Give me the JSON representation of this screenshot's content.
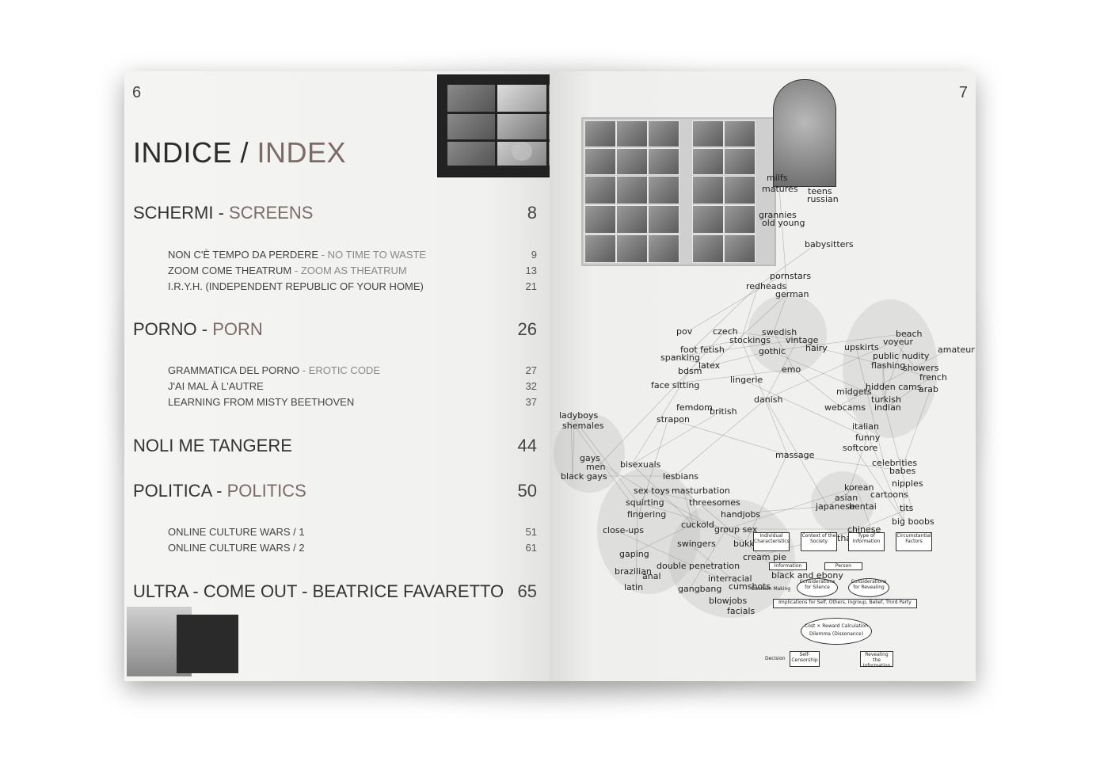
{
  "left_page": {
    "page_number": "6",
    "title_it": "INDICE",
    "title_sep": " / ",
    "title_en": "INDEX",
    "sections": [
      {
        "it": "SCHERMI",
        "sep": " - ",
        "en": "SCREENS",
        "page": "8",
        "items": [
          {
            "it": "NON C'È TEMPO DA PERDERE",
            "sep": " - ",
            "en": "NO TIME TO WASTE",
            "page": "9"
          },
          {
            "it": "ZOOM COME THEATRUM",
            "sep": " - ",
            "en": "ZOOM AS THEATRUM",
            "page": "13"
          },
          {
            "it": "I.R.Y.H. (INDEPENDENT REPUBLIC OF YOUR HOME)",
            "sep": "",
            "en": "",
            "page": "21"
          }
        ]
      },
      {
        "it": "PORNO",
        "sep": " - ",
        "en": "PORN",
        "page": "26",
        "items": [
          {
            "it": "GRAMMATICA DEL PORNO",
            "sep": " - ",
            "en": "EROTIC CODE",
            "page": "27"
          },
          {
            "it": "J'AI MAL À L'AUTRE",
            "sep": "",
            "en": "",
            "page": "32"
          },
          {
            "it": "LEARNING FROM MISTY BEETHOVEN",
            "sep": "",
            "en": "",
            "page": "37"
          }
        ]
      },
      {
        "it": "NOLI ME TANGERE",
        "sep": "",
        "en": "",
        "page": "44",
        "items": []
      },
      {
        "it": "POLITICA",
        "sep": " - ",
        "en": "POLITICS",
        "page": "50",
        "items": [
          {
            "it": "ONLINE CULTURE WARS / 1",
            "sep": "",
            "en": "",
            "page": "51"
          },
          {
            "it": "ONLINE CULTURE WARS / 2",
            "sep": "",
            "en": "",
            "page": "61"
          }
        ]
      },
      {
        "it": "ULTRA - COME OUT - BEATRICE FAVARETTO",
        "sep": "",
        "en": "",
        "page": "65",
        "items": []
      }
    ]
  },
  "right_page": {
    "page_number": "7",
    "network_labels": [
      "milfs",
      "matures",
      "teens",
      "russian",
      "grannies",
      "old young",
      "babysitters",
      "pornstars",
      "redheads",
      "german",
      "pov",
      "czech",
      "stockings",
      "swedish",
      "vintage",
      "hairy",
      "beach",
      "voyeur",
      "amateur",
      "upskirts",
      "public nudity",
      "foot fetish",
      "spanking",
      "latex",
      "gothic",
      "flashing",
      "showers",
      "bdsm",
      "emo",
      "french",
      "lingerie",
      "face sitting",
      "midgets",
      "hidden cams",
      "arab",
      "danish",
      "turkish",
      "webcams",
      "indian",
      "femdom",
      "british",
      "ladyboys",
      "shemales",
      "strapon",
      "italian",
      "funny",
      "softcore",
      "massage",
      "celebrities",
      "gays",
      "men",
      "bisexuals",
      "babes",
      "black gays",
      "lesbians",
      "nipples",
      "sex toys",
      "masturbation",
      "korean",
      "squirting",
      "cartoons",
      "asian",
      "threesomes",
      "japanese",
      "hentai",
      "tits",
      "fingering",
      "handjobs",
      "big boobs",
      "cuckold",
      "group sex",
      "chinese",
      "close-ups",
      "thai",
      "swingers",
      "bukkake",
      "bbw",
      "gaping",
      "cream pie",
      "brazilian",
      "double penetration",
      "anal",
      "black and ebony",
      "latin",
      "gangbang",
      "interracial",
      "cumshots",
      "blowjobs",
      "facials"
    ],
    "flowchart": {
      "boxes": [
        "Individual Characteristics",
        "Context of the Society",
        "Type of Information",
        "Circumstantial Factors",
        "Information",
        "Person",
        "Considerations for Silence",
        "Considerations for Revealing",
        "Implications for Self, Others, Ingroup, Belief, Third Party",
        "Cost × Reward Calculation",
        "Dilemma (Dissonance)",
        "Self-Censorship",
        "Revealing the Information"
      ],
      "labels": [
        "Decision Making",
        "Decision"
      ]
    }
  }
}
